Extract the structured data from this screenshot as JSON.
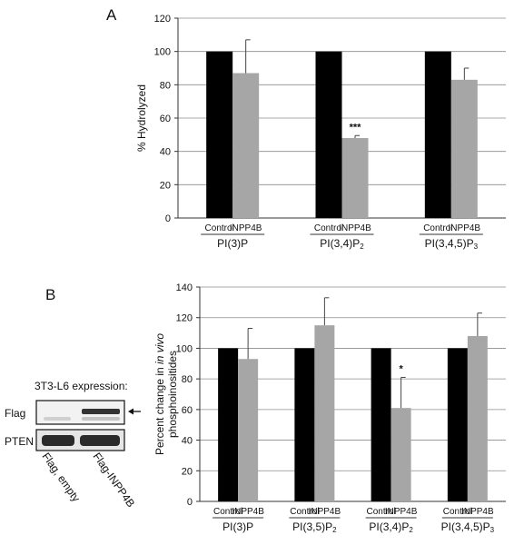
{
  "panel_a": {
    "letter": "A",
    "chart": {
      "type": "bar",
      "ylabel": "% Hydrolyzed",
      "ylim": [
        0,
        120
      ],
      "yticks": [
        0,
        20,
        40,
        60,
        80,
        100,
        120
      ],
      "grid": true,
      "groups": [
        {
          "label": "PI(3)P",
          "parts": [
            {
              "t": "PI(3)P"
            }
          ]
        },
        {
          "label": "PI(3,4)P2",
          "parts": [
            {
              "t": "PI(3,4)P"
            },
            {
              "t": "2",
              "sub": true
            }
          ]
        },
        {
          "label": "PI(3,4,5)P3",
          "parts": [
            {
              "t": "PI(3,4,5)P"
            },
            {
              "t": "3",
              "sub": true
            }
          ]
        }
      ],
      "series": [
        {
          "name": "Control",
          "color": "#000000",
          "values": [
            100,
            100,
            100
          ],
          "errors": [
            0,
            0,
            0
          ]
        },
        {
          "name": "INPP4B",
          "color": "#a6a6a6",
          "values": [
            87,
            48,
            83
          ],
          "errors": [
            20,
            1.5,
            7
          ]
        }
      ],
      "significance": [
        {
          "group": 1,
          "series": 1,
          "text": "***"
        }
      ]
    }
  },
  "panel_b": {
    "letter": "B",
    "blot": {
      "title": "3T3-L6 expression:",
      "rows": [
        "Flag",
        "PTEN"
      ],
      "lanes": [
        "Flag, empty",
        "Flag-INPP4B"
      ]
    },
    "chart": {
      "type": "bar",
      "ylabel_line1_parts": [
        {
          "t": "Percent change in "
        },
        {
          "t": "in vivo",
          "italic": true
        }
      ],
      "ylabel_line2": "phosphoinositides",
      "ylim": [
        0,
        140
      ],
      "yticks": [
        0,
        20,
        40,
        60,
        80,
        100,
        120,
        140
      ],
      "grid": true,
      "groups": [
        {
          "label": "PI(3)P",
          "parts": [
            {
              "t": "PI(3)P"
            }
          ]
        },
        {
          "label": "PI(3,5)P2",
          "parts": [
            {
              "t": "PI(3,5)P"
            },
            {
              "t": "2",
              "sub": true
            }
          ]
        },
        {
          "label": "PI(3,4)P2",
          "parts": [
            {
              "t": "PI(3,4)P"
            },
            {
              "t": "2",
              "sub": true
            }
          ]
        },
        {
          "label": "PI(3,4,5)P3",
          "parts": [
            {
              "t": "PI(3,4,5)P"
            },
            {
              "t": "3",
              "sub": true
            }
          ]
        }
      ],
      "series": [
        {
          "name": "Control",
          "color": "#000000",
          "values": [
            100,
            100,
            100,
            100
          ],
          "errors": [
            0,
            0,
            0,
            0
          ]
        },
        {
          "name": "INPP4B",
          "color": "#a6a6a6",
          "values": [
            93,
            115,
            61,
            108
          ],
          "errors": [
            20,
            18,
            20,
            15
          ]
        }
      ],
      "significance": [
        {
          "group": 2,
          "series": 1,
          "text": "*"
        }
      ]
    }
  }
}
